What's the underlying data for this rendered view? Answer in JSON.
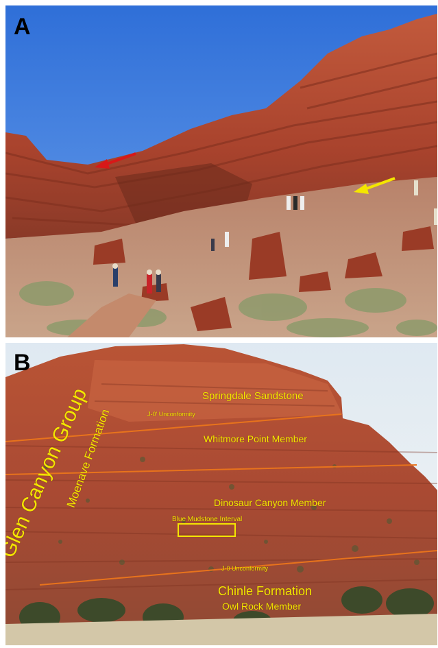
{
  "figure": {
    "panel_a": {
      "letter": "A"
    },
    "panel_b": {
      "letter": "B",
      "labels": {
        "group": "Glen Canyon Group",
        "formation": "Moenave Formation",
        "springdale": "Springdale Sandstone",
        "j0prime": "J-0' Unconformity",
        "whitmore": "Whitmore Point Member",
        "dinosaur": "Dinosaur Canyon Member",
        "blue_mudstone": "Blue Mudstone Interval",
        "j0": "J-0 Unconformity",
        "chinle": "Chinle Formation",
        "owl_rock": "Owl Rock Member"
      }
    },
    "colors": {
      "label": "#f4e600",
      "contact_line": "#e8731c",
      "arrow_red": "#d81818",
      "arrow_yellow": "#f4e600",
      "sky": "#3d7fe0",
      "rock": "#b24a32"
    }
  }
}
